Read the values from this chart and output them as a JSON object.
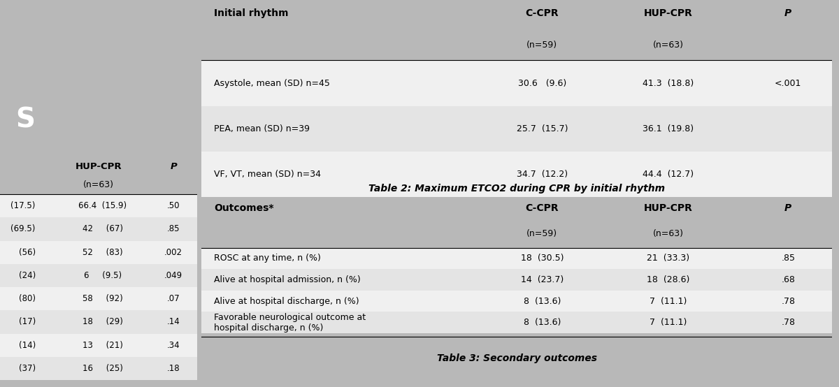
{
  "bg_color": "#b8b8b8",
  "left_panel_bg": "#e0e0e0",
  "right_panel_bg": "#e8e8e8",
  "header_bg": "#8b1a1a",
  "table1_title": "Table 2: Maximum ETCO2 during CPR by initial rhythm",
  "table2_title": "Table 3: Secondary outcomes",
  "table1": {
    "col_header": [
      "Initial rhythm",
      "C-CPR",
      "HUP-CPR",
      "P"
    ],
    "col_subheader": [
      "",
      "(n=59)",
      "(n=63)",
      ""
    ],
    "rows": [
      [
        "Asystole, mean (SD) n=45",
        "30.6   (9.6)",
        "41.3  (18.8)",
        "<.001"
      ],
      [
        "PEA, mean (SD) n=39",
        "25.7  (15.7)",
        "36.1  (19.8)",
        ""
      ],
      [
        "VF, VT, mean (SD) n=34",
        "34.7  (12.2)",
        "44.4  (12.7)",
        ""
      ]
    ],
    "row_shading": [
      "#f0f0f0",
      "#e4e4e4",
      "#f0f0f0"
    ]
  },
  "table2": {
    "col_header": [
      "Outcomes*",
      "C-CPR",
      "HUP-CPR",
      "P"
    ],
    "col_subheader": [
      "",
      "(n=59)",
      "(n=63)",
      ""
    ],
    "rows": [
      [
        "ROSC at any time, n (%)",
        "18  (30.5)",
        "21  (33.3)",
        ".85"
      ],
      [
        "Alive at hospital admission, n (%)",
        "14  (23.7)",
        "18  (28.6)",
        ".68"
      ],
      [
        "Alive at hospital discharge, n (%)",
        "8  (13.6)",
        "7  (11.1)",
        ".78"
      ],
      [
        "Favorable neurological outcome at\nhospital discharge, n (%)",
        "8  (13.6)",
        "7  (11.1)",
        ".78"
      ]
    ],
    "row_shading": [
      "#f0f0f0",
      "#e4e4e4",
      "#f0f0f0",
      "#e4e4e4"
    ]
  },
  "left_table": {
    "col_header": [
      "",
      "HUP-CPR",
      "P"
    ],
    "col_subheader": [
      "",
      "(n=63)",
      ""
    ],
    "rows": [
      [
        "(17.5)",
        "66.4  (15.9)",
        ".50"
      ],
      [
        "(69.5)",
        "42     (67)",
        ".85"
      ],
      [
        "(56)",
        "52     (83)",
        ".002"
      ],
      [
        "(24)",
        "6     (9.5)",
        ".049"
      ],
      [
        "(80)",
        "58     (92)",
        ".07"
      ],
      [
        "(17)",
        "18     (29)",
        ".14"
      ],
      [
        "(14)",
        "13     (21)",
        ".34"
      ],
      [
        "(37)",
        "16     (25)",
        ".18"
      ]
    ],
    "row_shading": [
      "#f0f0f0",
      "#e4e4e4",
      "#f0f0f0",
      "#e4e4e4",
      "#f0f0f0",
      "#e4e4e4",
      "#f0f0f0",
      "#e4e4e4"
    ]
  },
  "left_header_text": "S",
  "left_header_bg": "#8b1a1a"
}
